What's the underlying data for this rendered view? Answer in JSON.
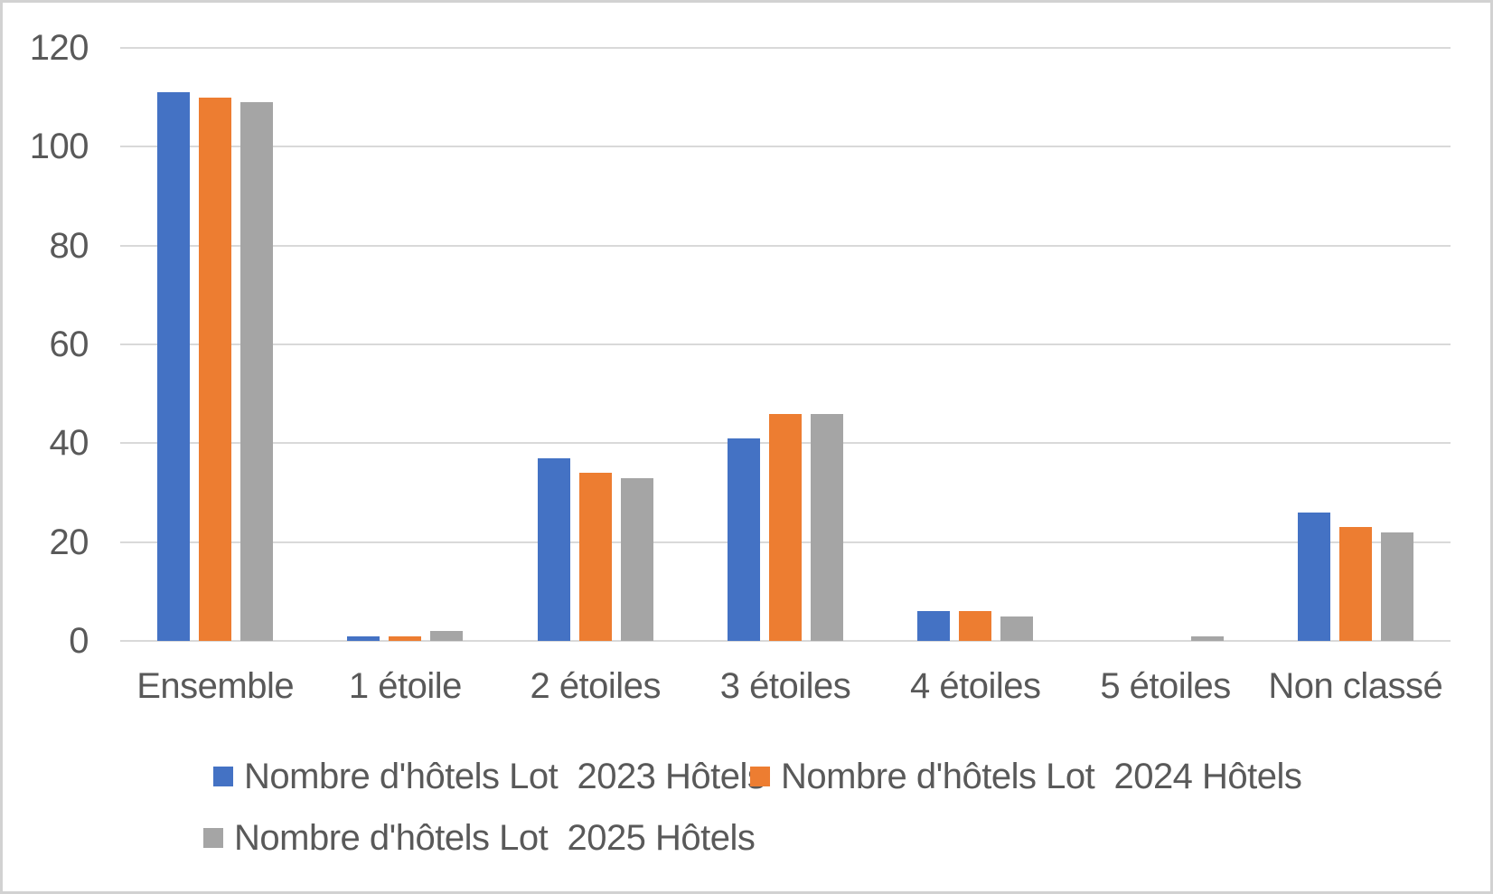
{
  "chart_data": {
    "type": "bar",
    "title": "",
    "xlabel": "",
    "ylabel": "",
    "categories": [
      "Ensemble",
      "1 étoile",
      "2 étoiles",
      "3 étoiles",
      "4 étoiles",
      "5 étoiles",
      "Non classé"
    ],
    "series": [
      {
        "name": "Nombre d'hôtels Lot  2023 Hôtels",
        "color": "#4472C4",
        "values": [
          111,
          1,
          37,
          41,
          6,
          0,
          26
        ]
      },
      {
        "name": "Nombre d'hôtels Lot  2024 Hôtels",
        "color": "#ED7D31",
        "values": [
          110,
          1,
          34,
          46,
          6,
          0,
          23
        ]
      },
      {
        "name": "Nombre d'hôtels Lot  2025 Hôtels",
        "color": "#A5A5A5",
        "values": [
          109,
          2,
          33,
          46,
          5,
          1,
          22
        ]
      }
    ],
    "ylim": [
      0,
      120
    ],
    "yticks": [
      0,
      20,
      40,
      60,
      80,
      100,
      120
    ],
    "grid": true,
    "legend_position": "bottom"
  },
  "colors": {
    "series_blue": "#4472C4",
    "series_orange": "#ED7D31",
    "series_gray": "#A5A5A5",
    "gridline": "#d9d9d9",
    "axis_text": "#595959",
    "frame_border": "#d2d2d2",
    "background": "#ffffff"
  }
}
